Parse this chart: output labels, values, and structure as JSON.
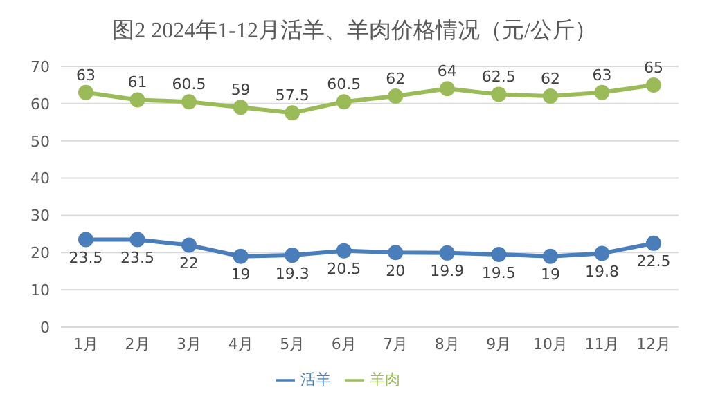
{
  "chart_data": {
    "type": "line",
    "title": "图2   2024年1-12月活羊、羊肉价格情况（元/公斤）",
    "categories": [
      "1月",
      "2月",
      "3月",
      "4月",
      "5月",
      "6月",
      "7月",
      "8月",
      "9月",
      "10月",
      "11月",
      "12月"
    ],
    "series": [
      {
        "name": "活羊",
        "color": "#4a7ebb",
        "values": [
          23.5,
          23.5,
          22,
          19,
          19.3,
          20.5,
          20,
          19.9,
          19.5,
          19,
          19.8,
          22.5
        ]
      },
      {
        "name": "羊肉",
        "color": "#9bbb59",
        "values": [
          63,
          61,
          60.5,
          59,
          57.5,
          60.5,
          62,
          64,
          62.5,
          62,
          63,
          65
        ]
      }
    ],
    "ylim": [
      0,
      70
    ],
    "yticks": [
      0,
      10,
      20,
      30,
      40,
      50,
      60,
      70
    ],
    "grid": "y",
    "legend": "bottom",
    "marker": "circle",
    "line_style": "solid",
    "data_labels": true
  }
}
